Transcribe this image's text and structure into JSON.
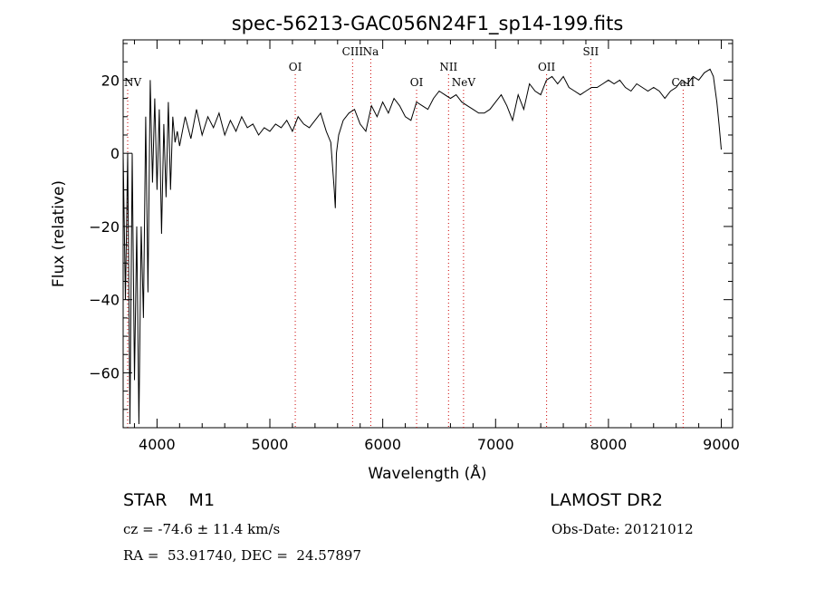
{
  "chart_data": {
    "type": "line",
    "title": "spec-56213-GAC056N24F1_sp14-199.fits",
    "xlabel": "Wavelength (Å)",
    "ylabel": "Flux (relative)",
    "xlim": [
      3700,
      9100
    ],
    "ylim": [
      -75,
      31
    ],
    "x_ticks": [
      4000,
      5000,
      6000,
      7000,
      8000,
      9000
    ],
    "y_ticks": [
      -60,
      -40,
      -20,
      0,
      20
    ],
    "grid": false,
    "line_color": "#000000",
    "marker_color": "#cc0000",
    "series": [
      {
        "x": [
          3700,
          3720,
          3740,
          3760,
          3780,
          3800,
          3820,
          3840,
          3860,
          3880,
          3900,
          3920,
          3940,
          3960,
          3980,
          4000,
          4020,
          4040,
          4060,
          4080,
          4100,
          4120,
          4140,
          4160,
          4180,
          4200,
          4250,
          4300,
          4350,
          4400,
          4450,
          4500,
          4550,
          4600,
          4650,
          4700,
          4750,
          4800,
          4850,
          4900,
          4950,
          5000,
          5050,
          5100,
          5150,
          5200,
          5250,
          5300,
          5350,
          5400,
          5450,
          5500,
          5540,
          5570,
          5580,
          5590,
          5610,
          5650,
          5700,
          5750,
          5800,
          5850,
          5900,
          5950,
          6000,
          6050,
          6100,
          6150,
          6200,
          6250,
          6300,
          6350,
          6400,
          6450,
          6500,
          6550,
          6600,
          6650,
          6700,
          6750,
          6800,
          6850,
          6900,
          6950,
          7000,
          7050,
          7100,
          7150,
          7200,
          7250,
          7300,
          7350,
          7400,
          7450,
          7500,
          7550,
          7600,
          7650,
          7700,
          7750,
          7800,
          7850,
          7900,
          7950,
          8000,
          8050,
          8100,
          8150,
          8200,
          8250,
          8300,
          8350,
          8400,
          8450,
          8500,
          8550,
          8600,
          8650,
          8700,
          8750,
          8800,
          8850,
          8900,
          8930,
          8960,
          8980,
          9000
        ],
        "y": [
          0,
          -40,
          0,
          -74,
          0,
          -62,
          -20,
          -74,
          -20,
          -45,
          10,
          -38,
          20,
          -8,
          15,
          -10,
          12,
          -22,
          8,
          -12,
          14,
          -10,
          10,
          3,
          6,
          2,
          10,
          4,
          12,
          5,
          10,
          7,
          11,
          5,
          9,
          6,
          10,
          7,
          8,
          5,
          7,
          6,
          8,
          7,
          9,
          6,
          10,
          8,
          7,
          9,
          11,
          6,
          3,
          -10,
          -15,
          0,
          5,
          9,
          11,
          12,
          8,
          6,
          13,
          10,
          14,
          11,
          15,
          13,
          10,
          9,
          14,
          13,
          12,
          15,
          17,
          16,
          15,
          16,
          14,
          13,
          12,
          11,
          11,
          12,
          14,
          16,
          13,
          9,
          16,
          12,
          19,
          17,
          16,
          20,
          21,
          19,
          21,
          18,
          17,
          16,
          17,
          18,
          18,
          19,
          20,
          19,
          20,
          18,
          17,
          19,
          18,
          17,
          18,
          17,
          15,
          17,
          18,
          20,
          19,
          21,
          20,
          22,
          23,
          21,
          14,
          8,
          1
        ]
      }
    ],
    "line_markers": [
      {
        "label": "NV",
        "x": 3740,
        "row": 2
      },
      {
        "label": "OI",
        "x": 5225,
        "row": 1
      },
      {
        "label": "CIII",
        "x": 5733,
        "row": 0
      },
      {
        "label": "Na",
        "x": 5894,
        "row": 0
      },
      {
        "label": "OI",
        "x": 6300,
        "row": 2
      },
      {
        "label": "NII",
        "x": 6583,
        "row": 1
      },
      {
        "label": "NeV",
        "x": 6716,
        "row": 2
      },
      {
        "label": "OII",
        "x": 7452,
        "row": 1
      },
      {
        "label": "SII",
        "x": 7843,
        "row": 0
      },
      {
        "label": "CaII",
        "x": 8662,
        "row": 2
      }
    ]
  },
  "info": {
    "object_class": "STAR    M1",
    "survey": "LAMOST DR2",
    "redshift": "cz = -74.6 ± 11.4 km/s",
    "obs_date": "Obs-Date: 20121012",
    "coords": "RA =  53.91740, DEC =  24.57897"
  }
}
